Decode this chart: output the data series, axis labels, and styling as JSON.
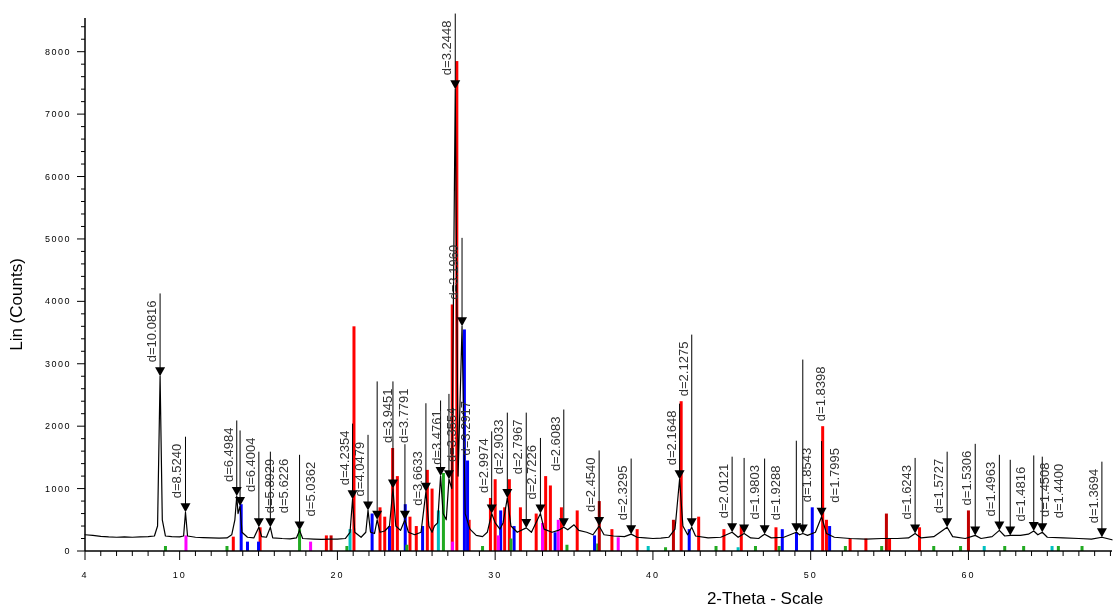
{
  "chart_data": {
    "type": "line",
    "xlabel": "2-Theta - Scale",
    "ylabel": "Lin (Counts)",
    "xlim": [
      4,
      69.1
    ],
    "ylim": [
      0,
      8540
    ],
    "xticks": [
      4,
      {
        "value": 5,
        "label": null
      },
      {
        "value": 6,
        "label": null
      },
      {
        "value": 7,
        "label": null
      },
      {
        "value": 8,
        "label": null
      },
      {
        "value": 9,
        "label": null
      },
      10,
      {
        "value": 11,
        "label": null
      },
      {
        "value": 12,
        "label": null
      },
      {
        "value": 13,
        "label": null
      },
      {
        "value": 14,
        "label": null
      },
      {
        "value": 15,
        "label": null
      },
      {
        "value": 16,
        "label": null
      },
      {
        "value": 17,
        "label": null
      },
      {
        "value": 18,
        "label": null
      },
      {
        "value": 19,
        "label": null
      },
      20,
      {
        "value": 21,
        "label": null
      },
      {
        "value": 22,
        "label": null
      },
      {
        "value": 23,
        "label": null
      },
      {
        "value": 24,
        "label": null
      },
      {
        "value": 25,
        "label": null
      },
      {
        "value": 26,
        "label": null
      },
      {
        "value": 27,
        "label": null
      },
      {
        "value": 28,
        "label": null
      },
      {
        "value": 29,
        "label": null
      },
      30,
      {
        "value": 31,
        "label": null
      },
      {
        "value": 32,
        "label": null
      },
      {
        "value": 33,
        "label": null
      },
      {
        "value": 34,
        "label": null
      },
      {
        "value": 35,
        "label": null
      },
      {
        "value": 36,
        "label": null
      },
      {
        "value": 37,
        "label": null
      },
      {
        "value": 38,
        "label": null
      },
      {
        "value": 39,
        "label": null
      },
      40,
      {
        "value": 41,
        "label": null
      },
      {
        "value": 42,
        "label": null
      },
      {
        "value": 43,
        "label": null
      },
      {
        "value": 44,
        "label": null
      },
      {
        "value": 45,
        "label": null
      },
      {
        "value": 46,
        "label": null
      },
      {
        "value": 47,
        "label": null
      },
      {
        "value": 48,
        "label": null
      },
      {
        "value": 49,
        "label": null
      },
      50,
      {
        "value": 51,
        "label": null
      },
      {
        "value": 52,
        "label": null
      },
      {
        "value": 53,
        "label": null
      },
      {
        "value": 54,
        "label": null
      },
      {
        "value": 55,
        "label": null
      },
      {
        "value": 56,
        "label": null
      },
      {
        "value": 57,
        "label": null
      },
      {
        "value": 58,
        "label": null
      },
      {
        "value": 59,
        "label": null
      },
      60,
      {
        "value": 61,
        "label": null
      },
      {
        "value": 62,
        "label": null
      },
      {
        "value": 63,
        "label": null
      },
      {
        "value": 64,
        "label": null
      },
      {
        "value": 65,
        "label": null
      },
      {
        "value": 66,
        "label": null
      },
      {
        "value": 67,
        "label": null
      },
      {
        "value": 68,
        "label": null
      },
      {
        "value": 69,
        "label": null
      }
    ],
    "yticks": [
      0,
      {
        "value": 200,
        "label": null
      },
      {
        "value": 400,
        "label": null
      },
      {
        "value": 600,
        "label": null
      },
      {
        "value": 800,
        "label": null
      },
      1000,
      {
        "value": 1200,
        "label": null
      },
      {
        "value": 1400,
        "label": null
      },
      {
        "value": 1600,
        "label": null
      },
      {
        "value": 1800,
        "label": null
      },
      2000,
      {
        "value": 2200,
        "label": null
      },
      {
        "value": 2400,
        "label": null
      },
      {
        "value": 2600,
        "label": null
      },
      {
        "value": 2800,
        "label": null
      },
      3000,
      {
        "value": 3200,
        "label": null
      },
      {
        "value": 3400,
        "label": null
      },
      {
        "value": 3600,
        "label": null
      },
      {
        "value": 3800,
        "label": null
      },
      4000,
      {
        "value": 4200,
        "label": null
      },
      {
        "value": 4400,
        "label": null
      },
      {
        "value": 4600,
        "label": null
      },
      {
        "value": 4800,
        "label": null
      },
      5000,
      {
        "value": 5200,
        "label": null
      },
      {
        "value": 5400,
        "label": null
      },
      {
        "value": 5600,
        "label": null
      },
      {
        "value": 5800,
        "label": null
      },
      6000,
      {
        "value": 6200,
        "label": null
      },
      {
        "value": 6400,
        "label": null
      },
      {
        "value": 6600,
        "label": null
      },
      {
        "value": 6800,
        "label": null
      },
      7000,
      {
        "value": 7200,
        "label": null
      },
      {
        "value": 7400,
        "label": null
      },
      {
        "value": 7600,
        "label": null
      },
      {
        "value": 7800,
        "label": null
      },
      8000,
      {
        "value": 8200,
        "label": null
      },
      {
        "value": 8400,
        "label": null
      }
    ],
    "series": [
      {
        "type": "bar",
        "color": "#ff0000",
        "x": [
          13.4,
          15.1,
          19.3,
          21.05,
          22.7,
          23.0,
          23.5,
          23.8,
          24.6,
          25.0,
          25.7,
          26.0,
          27.28,
          27.57,
          28.35,
          29.7,
          30.0,
          30.6,
          30.9,
          31.6,
          32.6,
          33.2,
          33.5,
          34.2,
          35.2,
          37.4,
          39.0,
          41.79,
          42.9,
          44.5,
          45.6,
          47.8,
          50.76,
          51.0,
          52.5,
          53.5,
          55.0,
          56.9
        ],
        "values": [
          230,
          380,
          250,
          3600,
          700,
          550,
          1650,
          1200,
          550,
          400,
          1300,
          1000,
          3950,
          7850,
          500,
          850,
          1150,
          700,
          1150,
          700,
          600,
          1200,
          1050,
          700,
          650,
          350,
          350,
          2400,
          550,
          350,
          400,
          380,
          2000,
          500,
          200,
          200,
          200,
          380
        ]
      },
      {
        "type": "bar",
        "color": "#0000ff",
        "x": [
          13.9,
          14.3,
          15.0,
          22.2,
          23.3,
          24.3,
          25.4,
          28.05,
          28.25,
          30.35,
          31.2,
          33.8,
          36.3,
          42.3,
          48.2,
          49.1,
          50.1,
          51.2
        ],
        "values": [
          750,
          150,
          150,
          600,
          400,
          750,
          400,
          3550,
          1450,
          650,
          400,
          300,
          250,
          350,
          350,
          300,
          700,
          400
        ]
      },
      {
        "type": "bar",
        "color": "#22aa22",
        "x": [
          9.1,
          13.0,
          17.6,
          20.6,
          24.4,
          26.72,
          29.2,
          31.0,
          34.55,
          36.5,
          40.8,
          44.0,
          46.5,
          48.0,
          52.2,
          54.5,
          57.8,
          59.5,
          62.3,
          63.5,
          65.7,
          67.2
        ],
        "values": [
          80,
          80,
          350,
          80,
          100,
          1250,
          80,
          200,
          100,
          120,
          60,
          80,
          80,
          80,
          80,
          80,
          80,
          80,
          80,
          80,
          80,
          80
        ]
      },
      {
        "type": "bar",
        "color": "#ff00ff",
        "x": [
          10.4,
          18.3,
          27.3,
          30.2,
          33.0,
          34.0,
          37.8
        ],
        "values": [
          250,
          150,
          150,
          250,
          450,
          500,
          220
        ]
      },
      {
        "type": "bar",
        "color": "#00c0c0",
        "x": [
          20.8,
          26.4,
          39.7,
          45.4,
          61.0,
          65.3
        ],
        "values": [
          350,
          650,
          80,
          60,
          80,
          80
        ]
      },
      {
        "type": "bar",
        "color": "#c00000",
        "x": [
          19.6,
          36.6,
          41.3,
          54.8,
          60.0
        ],
        "values": [
          250,
          800,
          500,
          600,
          650
        ]
      },
      {
        "color": "#000000",
        "x": [
          4,
          4.5,
          5,
          5.5,
          6,
          6.5,
          7,
          7.5,
          8,
          8.4,
          8.6,
          8.76,
          8.9,
          9.1,
          9.5,
          10,
          10.25,
          10.37,
          10.5,
          11,
          11.5,
          12,
          12.5,
          13,
          13.3,
          13.5,
          13.62,
          13.7,
          13.83,
          13.95,
          14.3,
          14.7,
          15.02,
          15.2,
          15.5,
          15.75,
          15.9,
          16.5,
          17,
          17.4,
          17.6,
          17.8,
          18.5,
          19,
          19.5,
          20,
          20.5,
          20.8,
          20.96,
          21.1,
          21.5,
          21.8,
          21.94,
          22.1,
          22.35,
          22.52,
          22.7,
          23,
          23.3,
          23.52,
          23.7,
          24,
          24.28,
          24.5,
          24.9,
          25.3,
          25.61,
          25.8,
          26,
          26.15,
          26.35,
          26.54,
          26.7,
          26.9,
          27.07,
          27.25,
          27.47,
          27.65,
          27.9,
          28.1,
          28.4,
          28.8,
          29.2,
          29.5,
          29.78,
          30,
          30.3,
          30.5,
          30.77,
          31,
          31.4,
          31.97,
          32.3,
          32.87,
          33.1,
          33.6,
          34.0,
          34.35,
          34.6,
          35.0,
          35.3,
          35.8,
          36.2,
          36.59,
          36.9,
          37.5,
          38.2,
          38.62,
          39,
          39.5,
          40,
          40.5,
          41,
          41.4,
          41.69,
          41.9,
          42.2,
          42.46,
          42.7,
          43.5,
          44.3,
          45.02,
          45.4,
          45.78,
          46.2,
          46.7,
          47.08,
          47.5,
          48.3,
          49.09,
          49.3,
          49.5,
          49.8,
          50.3,
          50.69,
          51,
          51.5,
          52.5,
          53.5,
          54.5,
          55.5,
          56.2,
          56.62,
          57,
          57.8,
          58.65,
          59,
          59.8,
          60.43,
          60.8,
          61.5,
          61.96,
          62.3,
          62.65,
          63.3,
          63.8,
          64.14,
          64.4,
          64.68,
          65,
          66,
          67,
          67.8,
          68.46,
          69.1
        ],
        "values": [
          260,
          250,
          235,
          225,
          220,
          225,
          220,
          225,
          230,
          240,
          400,
          2800,
          500,
          240,
          230,
          225,
          240,
          620,
          240,
          220,
          215,
          210,
          205,
          210,
          260,
          500,
          880,
          600,
          720,
          300,
          220,
          210,
          380,
          230,
          220,
          380,
          210,
          200,
          195,
          210,
          330,
          200,
          190,
          185,
          190,
          190,
          200,
          300,
          830,
          300,
          220,
          300,
          650,
          300,
          280,
          500,
          300,
          320,
          400,
          1000,
          400,
          330,
          500,
          300,
          260,
          300,
          950,
          400,
          300,
          400,
          450,
          1200,
          600,
          500,
          1150,
          1000,
          7400,
          1200,
          3600,
          600,
          350,
          250,
          230,
          300,
          600,
          450,
          350,
          450,
          850,
          400,
          300,
          370,
          300,
          600,
          350,
          300,
          330,
          380,
          340,
          420,
          330,
          300,
          260,
          400,
          260,
          240,
          230,
          270,
          220,
          210,
          200,
          205,
          220,
          350,
          1150,
          400,
          260,
          380,
          240,
          210,
          220,
          300,
          220,
          280,
          210,
          200,
          270,
          210,
          220,
          300,
          260,
          280,
          250,
          300,
          550,
          280,
          220,
          200,
          190,
          200,
          200,
          210,
          280,
          210,
          230,
          380,
          230,
          200,
          250,
          200,
          230,
          330,
          240,
          250,
          250,
          270,
          320,
          260,
          300,
          220,
          210,
          200,
          190,
          220,
          180
        ]
      }
    ],
    "annotations": [
      {
        "text": "d=10.0816",
        "x": 8.76,
        "y": 2800
      },
      {
        "text": "d=8.5240",
        "x": 10.37,
        "y": 620
      },
      {
        "text": "d=6.4984",
        "x": 13.62,
        "y": 880
      },
      {
        "text": "d=6.4004",
        "x": 13.83,
        "y": 720
      },
      {
        "text": "d=5.8929",
        "x": 15.02,
        "y": 380
      },
      {
        "text": "d=5.6226",
        "x": 15.75,
        "y": 380
      },
      {
        "text": "d=5.0362",
        "x": 17.6,
        "y": 330
      },
      {
        "text": "d=4.2354",
        "x": 20.96,
        "y": 830
      },
      {
        "text": "d=4.0479",
        "x": 21.94,
        "y": 650
      },
      {
        "text": "d=3.9451",
        "x": 22.52,
        "y": 500
      },
      {
        "text": "d=3.7791",
        "x": 23.52,
        "y": 1000
      },
      {
        "text": "d=3.6633",
        "x": 24.28,
        "y": 500
      },
      {
        "text": "d=3.4761",
        "x": 25.61,
        "y": 950
      },
      {
        "text": "d=3.3554",
        "x": 26.54,
        "y": 1200
      },
      {
        "text": "d=3.2917",
        "x": 27.07,
        "y": 1150
      },
      {
        "text": "d=3.2448",
        "x": 27.47,
        "y": 7400
      },
      {
        "text": "d=3.1960",
        "x": 27.9,
        "y": 3600
      },
      {
        "text": "d=2.9974",
        "x": 29.78,
        "y": 600
      },
      {
        "text": "d=2.9033",
        "x": 30.77,
        "y": 850
      },
      {
        "text": "d=2.7967",
        "x": 31.97,
        "y": 370
      },
      {
        "text": "d=2.7226",
        "x": 32.87,
        "y": 600
      },
      {
        "text": "d=2.6083",
        "x": 34.35,
        "y": 380
      },
      {
        "text": "d=2.4540",
        "x": 36.59,
        "y": 400
      },
      {
        "text": "d=2.3295",
        "x": 38.62,
        "y": 270
      },
      {
        "text": "d=2.1648",
        "x": 41.69,
        "y": 1150
      },
      {
        "text": "d=2.1275",
        "x": 42.46,
        "y": 380
      },
      {
        "text": "d=2.0121",
        "x": 45.02,
        "y": 300
      },
      {
        "text": "d=1.9803",
        "x": 45.78,
        "y": 280
      },
      {
        "text": "d=1.9288",
        "x": 47.08,
        "y": 270
      },
      {
        "text": "d=1.8543",
        "x": 49.09,
        "y": 300
      },
      {
        "text": "d=1.8398",
        "x": 49.5,
        "y": 280
      },
      {
        "text": "d=1.7995",
        "x": 50.69,
        "y": 550
      },
      {
        "text": "d=1.6243",
        "x": 56.62,
        "y": 280
      },
      {
        "text": "d=1.5727",
        "x": 58.65,
        "y": 380
      },
      {
        "text": "d=1.5306",
        "x": 60.43,
        "y": 250
      },
      {
        "text": "d=1.4963",
        "x": 61.96,
        "y": 330
      },
      {
        "text": "d=1.4816",
        "x": 62.65,
        "y": 250
      },
      {
        "text": "d=1.4508",
        "x": 64.14,
        "y": 320
      },
      {
        "text": "d=1.4400",
        "x": 64.68,
        "y": 300
      },
      {
        "text": "d=1.3694",
        "x": 68.46,
        "y": 220
      }
    ]
  }
}
